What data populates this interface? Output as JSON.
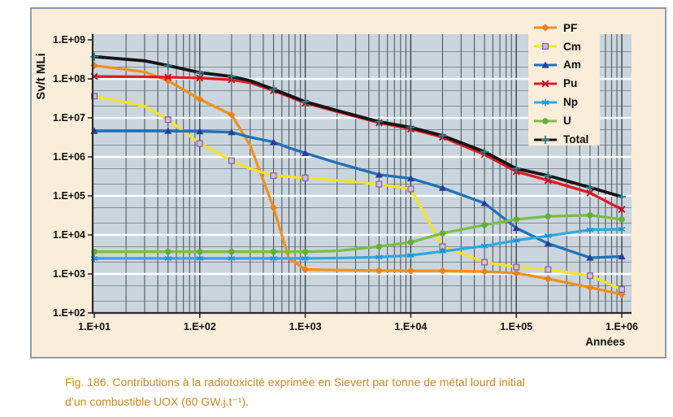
{
  "figure": {
    "panel_bg": "#FAEDD9",
    "plot_bg": "#CAD5DE",
    "border_color": "#8F9AA3",
    "caption_color": "#C8891C"
  },
  "caption": {
    "line1": "Fig. 186. Contributions à la radiotoxicité exprimée en Sievert par tonne de métal lourd initial",
    "line2": "d’un combustible UOX (60 GW.j.t⁻¹)."
  },
  "chart_data": {
    "type": "line",
    "xscale": "log",
    "yscale": "log",
    "xlabel": "Années",
    "ylabel": "Sv/t MLi",
    "xlim": [
      10,
      1000000
    ],
    "ylim": [
      100,
      1000000000
    ],
    "x_ticklabels": [
      "1.E+01",
      "1.E+02",
      "1.E+03",
      "1.E+04",
      "1.E+05",
      "1.E+06"
    ],
    "y_ticklabels": [
      "1.E+09",
      "1.E+08",
      "1.E+07",
      "1.E+06",
      "1.E+05",
      "1.E+04",
      "1.E+03",
      "1.E+02"
    ],
    "grid": {
      "vertical_minors": [
        2,
        3,
        4,
        5,
        6,
        7,
        8,
        9
      ],
      "horizontal_minors": [
        2,
        5
      ],
      "major_horizontal_color": "#FFFFFF",
      "minor_color": "#545A60"
    },
    "legend_position": "top-right",
    "x": [
      10,
      30,
      50,
      100,
      200,
      300,
      500,
      700,
      1000,
      2000,
      5000,
      10000,
      20000,
      50000,
      100000,
      200000,
      500000,
      1000000
    ],
    "marker_x": [
      10,
      50,
      100,
      200,
      500,
      1000,
      5000,
      10000,
      20000,
      50000,
      100000,
      200000,
      500000,
      1000000
    ],
    "series": [
      {
        "name": "PF",
        "color": "#F0911E",
        "marker": "diamond",
        "marker_color": "#E8821A",
        "values": [
          220000000.0,
          150000000.0,
          90000000.0,
          30000000.0,
          12000000.0,
          2000000.0,
          50000.0,
          2500.0,
          1300.0,
          1250.0,
          1220.0,
          1200.0,
          1200.0,
          1150.0,
          1050.0,
          750.0,
          450.0,
          300.0
        ]
      },
      {
        "name": "Cm",
        "color": "#F4E32B",
        "marker": "square",
        "marker_color": "#8064A5",
        "values": [
          36000000.0,
          20000000.0,
          9000000.0,
          2200000.0,
          800000.0,
          500000.0,
          330000.0,
          310000.0,
          290000.0,
          250000.0,
          200000.0,
          150000.0,
          5000.0,
          2000.0,
          1500.0,
          1300.0,
          900.0,
          400.0
        ]
      },
      {
        "name": "Am",
        "color": "#1F72B8",
        "marker": "triangle",
        "marker_color": "#2D3C96",
        "values": [
          4600000.0,
          4600000.0,
          4600000.0,
          4500000.0,
          4300000.0,
          3200000.0,
          2400000.0,
          1700000.0,
          1250000.0,
          700000.0,
          350000.0,
          280000.0,
          160000.0,
          65000.0,
          15000.0,
          6000.0,
          2600.0,
          2800.0
        ]
      },
      {
        "name": "Pu",
        "color": "#E01A23",
        "marker": "xmark",
        "marker_color": "#C01025",
        "values": [
          115000000.0,
          113000000.0,
          110000000.0,
          105000000.0,
          95000000.0,
          80000000.0,
          50000000.0,
          35000000.0,
          24000000.0,
          14500000.0,
          7500000.0,
          5200000.0,
          3200000.0,
          1150000.0,
          420000.0,
          250000.0,
          120000.0,
          45000.0
        ]
      },
      {
        "name": "Np",
        "color": "#30A9E0",
        "marker": "asterisk",
        "marker_color": "#1B93CE",
        "values": [
          2500.0,
          2500.0,
          2500.0,
          2500.0,
          2500.0,
          2500.0,
          2500.0,
          2500.0,
          2500.0,
          2550.0,
          2700.0,
          3000.0,
          3800.0,
          5200.0,
          7200.0,
          9500.0,
          13500.0,
          14000.0
        ]
      },
      {
        "name": "U",
        "color": "#79BF43",
        "marker": "circle",
        "marker_color": "#63AE35",
        "values": [
          3700.0,
          3700.0,
          3700.0,
          3700.0,
          3700.0,
          3700.0,
          3700.0,
          3700.0,
          3700.0,
          3900.0,
          5000.0,
          6500.0,
          11000.0,
          18000.0,
          25000.0,
          30000.0,
          32000.0,
          25000.0
        ]
      },
      {
        "name": "Total",
        "color": "#151515",
        "marker": "plus",
        "marker_color": "#2E8083",
        "values": [
          370000000.0,
          290000000.0,
          220000000.0,
          145000000.0,
          115000000.0,
          90000000.0,
          54000000.0,
          38000000.0,
          26000000.0,
          15500000.0,
          8000000.0,
          5700000.0,
          3500000.0,
          1350000.0,
          500000.0,
          330000.0,
          165000.0,
          95000.0
        ]
      }
    ]
  }
}
